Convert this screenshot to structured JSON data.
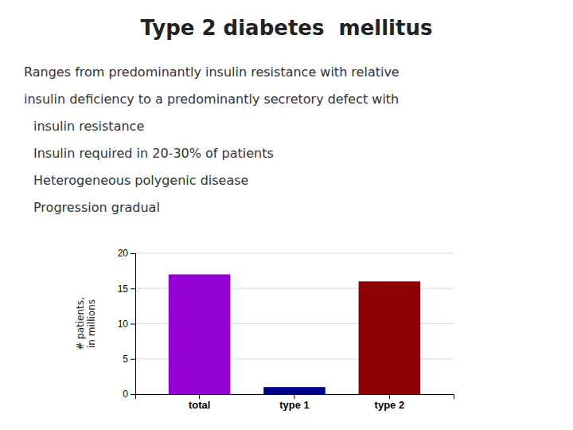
{
  "chart_data": {
    "type": "bar",
    "title": "Type 2 diabetes  mellitus",
    "annotations": [
      "Ranges from predominantly insulin resistance with relative",
      "insulin deficiency to a predominantly secretory defect with",
      "insulin resistance",
      "Insulin required in 20-30% of patients",
      "Heterogeneous polygenic disease",
      "Progression gradual"
    ],
    "categories": [
      "total",
      "type 1",
      "type 2"
    ],
    "values": [
      17,
      1,
      16
    ],
    "colors": [
      "#9400d3",
      "#00008b",
      "#8b0000"
    ],
    "ylabel": "# patients,\nin millions",
    "ylim": [
      0,
      20
    ],
    "yticks": [
      0,
      5,
      10,
      15,
      20
    ],
    "grid": true
  }
}
